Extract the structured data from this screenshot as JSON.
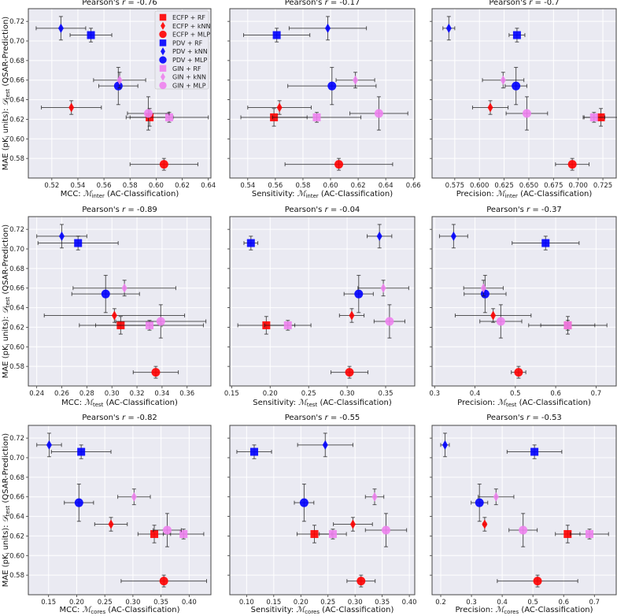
{
  "chart_data": {
    "type": "scatter",
    "layout": "3x3 grid of scatter plots with error bars",
    "ylabel": {
      "prefix": "MAE (pK",
      "sub1": "i",
      "mid": " units): ",
      "sym": "𝒟",
      "sub": "test",
      "suffix": " (QSAR-Prediction)"
    },
    "ylim": [
      0.56,
      0.733
    ],
    "yticks": [
      0.58,
      0.6,
      0.62,
      0.64,
      0.66,
      0.68,
      0.7,
      0.72
    ],
    "grid": true,
    "legend_placement": "top-right of first panel",
    "models": [
      {
        "name": "ECFP + RF",
        "color": "#ff0000",
        "marker": "square",
        "y": 0.622,
        "yerr": 0.009
      },
      {
        "name": "ECFP + kNN",
        "color": "#ff0000",
        "marker": "diamond",
        "y": 0.632,
        "yerr": 0.007
      },
      {
        "name": "ECFP + MLP",
        "color": "#ff0000",
        "marker": "circle",
        "y": 0.574,
        "yerr": 0.006
      },
      {
        "name": "PDV + RF",
        "color": "#0000ff",
        "marker": "square",
        "y": 0.706,
        "yerr": 0.007
      },
      {
        "name": "PDV + kNN",
        "color": "#0000ff",
        "marker": "diamond",
        "y": 0.713,
        "yerr": 0.012
      },
      {
        "name": "PDV + MLP",
        "color": "#0000ff",
        "marker": "circle",
        "y": 0.654,
        "yerr": 0.019
      },
      {
        "name": "GIN + RF",
        "color": "#ee82ee",
        "marker": "square",
        "y": 0.622,
        "yerr": 0.005
      },
      {
        "name": "GIN + kNN",
        "color": "#ee82ee",
        "marker": "diamond",
        "y": 0.66,
        "yerr": 0.008
      },
      {
        "name": "GIN + MLP",
        "color": "#ee82ee",
        "marker": "circle",
        "y": 0.626,
        "yerr": 0.017
      }
    ],
    "panels": [
      {
        "title_prefix": "Pearson's ",
        "title_r": "r",
        "title_value": " = -0.76",
        "xlabel": {
          "prefix": "MCC: ",
          "sym": "ℳ",
          "sub": "inter",
          "suffix": " (AC-Classification)"
        },
        "xlim": [
          0.502,
          0.642
        ],
        "xticks": [
          0.52,
          0.54,
          0.56,
          0.58,
          0.6,
          0.62,
          0.64
        ],
        "tick_decimals": 2,
        "x": [
          0.595,
          0.535,
          0.606,
          0.55,
          0.527,
          0.571,
          0.61,
          0.572,
          0.594
        ],
        "xerr": [
          0.018,
          0.023,
          0.026,
          0.016,
          0.019,
          0.015,
          0.03,
          0.02,
          0.016
        ]
      },
      {
        "title_prefix": "Pearson's ",
        "title_r": "r",
        "title_value": " = -0.17",
        "xlabel": {
          "prefix": "Sensitivity: ",
          "sym": "ℳ",
          "sub": "inter",
          "suffix": " (AC-Classification)"
        },
        "xlim": [
          0.527,
          0.661
        ],
        "xticks": [
          0.54,
          0.56,
          0.58,
          0.6,
          0.62,
          0.64,
          0.66
        ],
        "tick_decimals": 2,
        "x": [
          0.559,
          0.563,
          0.606,
          0.561,
          0.598,
          0.601,
          0.59,
          0.618,
          0.635
        ],
        "xerr": [
          0.024,
          0.023,
          0.039,
          0.024,
          0.028,
          0.032,
          0.032,
          0.014,
          0.021
        ]
      },
      {
        "title_prefix": "Pearson's ",
        "title_r": "r",
        "title_value": " = -0.7",
        "xlabel": {
          "prefix": "Precision: ",
          "sym": "ℳ",
          "sub": "inter",
          "suffix": " (AC-Classification)"
        },
        "xlim": [
          0.552,
          0.7385
        ],
        "xticks": [
          0.575,
          0.6,
          0.625,
          0.65,
          0.675,
          0.7,
          0.725
        ],
        "tick_decimals": 3,
        "x": [
          0.723,
          0.611,
          0.694,
          0.638,
          0.569,
          0.637,
          0.716,
          0.624,
          0.648
        ],
        "xerr": [
          0.017,
          0.018,
          0.017,
          0.008,
          0.006,
          0.011,
          0.011,
          0.021,
          0.021
        ]
      },
      {
        "title_prefix": "Pearson's ",
        "title_r": "r",
        "title_value": " = -0.89",
        "xlabel": {
          "prefix": "MCC: ",
          "sym": "ℳ",
          "sub": "test",
          "suffix": " (AC-Classification)"
        },
        "xlim": [
          0.2333,
          0.379
        ],
        "xticks": [
          0.24,
          0.26,
          0.28,
          0.3,
          0.32,
          0.34,
          0.36,
          0.38
        ],
        "tick_decimals": 2,
        "x": [
          0.307,
          0.302,
          0.335,
          0.273,
          0.26,
          0.295,
          0.33,
          0.31,
          0.339
        ],
        "xerr": [
          0.033,
          0.056,
          0.018,
          0.032,
          0.02,
          0.027,
          0.043,
          0.041,
          0.036
        ]
      },
      {
        "title_prefix": "Pearson's ",
        "title_r": "r",
        "title_value": " = -0.04",
        "xlabel": {
          "prefix": "Sensitivity: ",
          "sym": "ℳ",
          "sub": "test",
          "suffix": " (AC-Classification)"
        },
        "xlim": [
          0.1476,
          0.3878
        ],
        "xticks": [
          0.15,
          0.2,
          0.25,
          0.3,
          0.35
        ],
        "tick_decimals": 2,
        "x": [
          0.195,
          0.306,
          0.303,
          0.175,
          0.342,
          0.315,
          0.223,
          0.347,
          0.355
        ],
        "xerr": [
          0.037,
          0.016,
          0.024,
          0.009,
          0.016,
          0.019,
          0.03,
          0.033,
          0.02
        ]
      },
      {
        "title_prefix": "Pearson's ",
        "title_r": "r",
        "title_value": " = -0.37",
        "xlabel": {
          "prefix": "Precision: ",
          "sym": "ℳ",
          "sub": "test",
          "suffix": " (AC-Classification)"
        },
        "xlim": [
          0.2936,
          0.75
        ],
        "xticks": [
          0.3,
          0.4,
          0.5,
          0.6,
          0.7
        ],
        "tick_decimals": 1,
        "x": [
          0.63,
          0.445,
          0.508,
          0.575,
          0.347,
          0.425,
          0.63,
          0.421,
          0.464
        ],
        "xerr": [
          0.067,
          0.094,
          0.018,
          0.083,
          0.035,
          0.052,
          0.097,
          0.049,
          0.052
        ]
      },
      {
        "title_prefix": "Pearson's ",
        "title_r": "r",
        "title_value": " = -0.82",
        "xlabel": {
          "prefix": "MCC: ",
          "sym": "ℳ",
          "sub": "cores",
          "suffix": " (AC-Classification)"
        },
        "xlim": [
          0.114,
          0.4387
        ],
        "xticks": [
          0.15,
          0.2,
          0.25,
          0.3,
          0.35,
          0.4
        ],
        "tick_decimals": 2,
        "x": [
          0.338,
          0.261,
          0.355,
          0.208,
          0.151,
          0.204,
          0.39,
          0.302,
          0.361
        ],
        "xerr": [
          0.029,
          0.029,
          0.076,
          0.053,
          0.022,
          0.026,
          0.036,
          0.029,
          0.025
        ]
      },
      {
        "title_prefix": "Pearson's ",
        "title_r": "r",
        "title_value": " = -0.55",
        "xlabel": {
          "prefix": "Sensitivity: ",
          "sym": "ℳ",
          "sub": "cores",
          "suffix": " (AC-Classification)"
        },
        "xlim": [
          0.069,
          0.41
        ],
        "xticks": [
          0.1,
          0.15,
          0.2,
          0.25,
          0.3,
          0.35,
          0.4
        ],
        "tick_decimals": 2,
        "x": [
          0.225,
          0.296,
          0.311,
          0.114,
          0.245,
          0.206,
          0.259,
          0.336,
          0.357
        ],
        "xerr": [
          0.032,
          0.036,
          0.026,
          0.032,
          0.051,
          0.018,
          0.025,
          0.017,
          0.038
        ]
      },
      {
        "title_prefix": "Pearson's ",
        "title_r": "r",
        "title_value": " = -0.53",
        "xlabel": {
          "prefix": "Precision: ",
          "sym": "ℳ",
          "sub": "cores",
          "suffix": " (AC-Classification)"
        },
        "xlim": [
          0.1718,
          0.771
        ],
        "xticks": [
          0.2,
          0.3,
          0.4,
          0.5,
          0.6,
          0.7
        ],
        "tick_decimals": 1,
        "x": [
          0.613,
          0.343,
          0.515,
          0.505,
          0.214,
          0.326,
          0.684,
          0.38,
          0.468
        ],
        "xerr": [
          0.04,
          0.005,
          0.131,
          0.089,
          0.014,
          0.027,
          0.062,
          0.058,
          0.046
        ]
      }
    ]
  }
}
